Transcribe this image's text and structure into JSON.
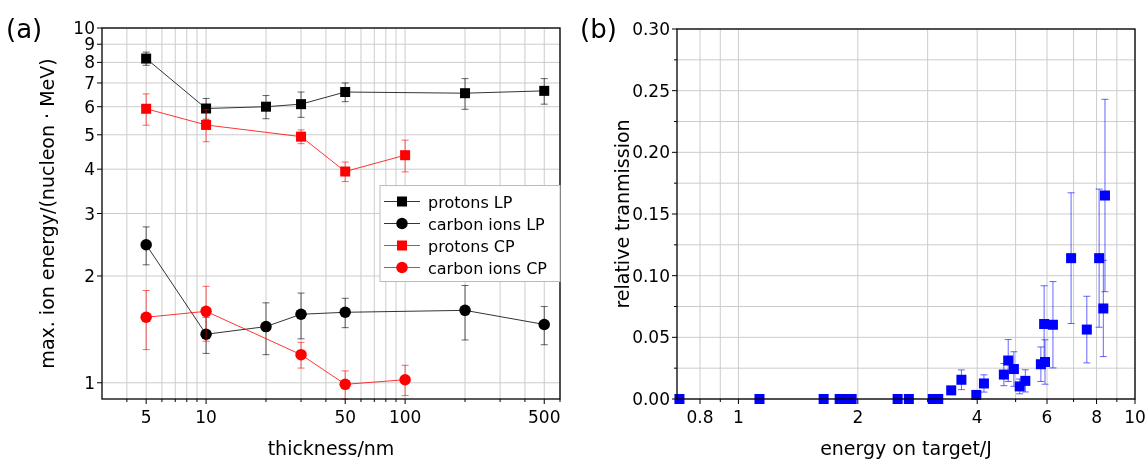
{
  "chart_data": [
    {
      "type": "line",
      "title": "(a)",
      "xlabel": "thickness/nm",
      "ylabel": "max. ion energy/(nucleon · MeV)",
      "log": "xy",
      "grid": true,
      "legend": "right",
      "xlim": [
        3,
        600
      ],
      "ylim": [
        0.9,
        10
      ],
      "xticks": [
        {
          "value": 4,
          "label": null
        },
        5,
        {
          "value": 6,
          "label": null
        },
        {
          "value": 7,
          "label": null
        },
        {
          "value": 8,
          "label": null
        },
        {
          "value": 9,
          "label": null
        },
        10,
        {
          "value": 20,
          "label": null
        },
        {
          "value": 30,
          "label": null
        },
        {
          "value": 40,
          "label": null
        },
        50,
        {
          "value": 60,
          "label": null
        },
        {
          "value": 70,
          "label": null
        },
        {
          "value": 80,
          "label": null
        },
        {
          "value": 90,
          "label": null
        },
        100,
        {
          "value": 200,
          "label": null
        },
        {
          "value": 300,
          "label": null
        },
        {
          "value": 400,
          "label": null
        },
        500,
        {
          "value": 600,
          "label": null
        }
      ],
      "yticks": [
        1,
        2,
        3,
        4,
        5,
        6,
        7,
        8,
        9,
        10
      ],
      "series": [
        {
          "name": "protons LP",
          "color": "#000000",
          "marker": "square",
          "x": [
            5,
            10,
            20,
            30,
            50,
            200,
            500
          ],
          "values": [
            8.2,
            5.93,
            6.0,
            6.1,
            6.6,
            6.55,
            6.65
          ],
          "errors": [
            0.35,
            0.4,
            0.45,
            0.5,
            0.4,
            0.65,
            0.55
          ]
        },
        {
          "name": "carbon ions LP",
          "color": "#000000",
          "marker": "circle",
          "x": [
            5,
            10,
            20,
            30,
            50,
            200,
            500
          ],
          "values": [
            2.45,
            1.37,
            1.44,
            1.56,
            1.58,
            1.6,
            1.46
          ],
          "errors": [
            0.3,
            0.16,
            0.24,
            0.23,
            0.15,
            0.28,
            0.18
          ]
        },
        {
          "name": "protons CP",
          "color": "#ff0000",
          "marker": "square",
          "x": [
            5,
            10,
            30,
            50,
            100
          ],
          "values": [
            5.92,
            5.33,
            4.94,
            3.94,
            4.38
          ],
          "errors": [
            0.6,
            0.55,
            0.22,
            0.25,
            0.45
          ]
        },
        {
          "name": "carbon ions CP",
          "color": "#ff0000",
          "marker": "circle",
          "x": [
            5,
            10,
            30,
            50,
            100
          ],
          "values": [
            1.53,
            1.59,
            1.2,
            0.99,
            1.02
          ],
          "errors": [
            0.29,
            0.28,
            0.1,
            0.09,
            0.1
          ]
        }
      ]
    },
    {
      "type": "scatter",
      "title": "(b)",
      "xlabel": "energy on target/J",
      "ylabel": "relative tranmission",
      "log": "x",
      "grid": true,
      "marker": "square",
      "xlim": [
        0.7,
        10
      ],
      "ylim": [
        0,
        0.3
      ],
      "xticks": [
        0.8,
        {
          "value": 0.9,
          "label": null
        },
        1,
        2,
        {
          "value": 3,
          "label": null
        },
        4,
        {
          "value": 5,
          "label": null
        },
        6,
        {
          "value": 7,
          "label": null
        },
        8,
        {
          "value": 9,
          "label": null
        },
        10
      ],
      "yticks": [
        {
          "value": 0,
          "label": "0.00"
        },
        {
          "value": 0.025,
          "label": null
        },
        {
          "value": 0.05,
          "label": "0.05"
        },
        {
          "value": 0.075,
          "label": null
        },
        {
          "value": 0.1,
          "label": "0.10"
        },
        {
          "value": 0.125,
          "label": null
        },
        {
          "value": 0.15,
          "label": "0.15"
        },
        {
          "value": 0.175,
          "label": null
        },
        {
          "value": 0.2,
          "label": "0.20"
        },
        {
          "value": 0.225,
          "label": null
        },
        {
          "value": 0.25,
          "label": "0.25"
        },
        {
          "value": 0.275,
          "label": null
        },
        {
          "value": 0.3,
          "label": "0.30"
        }
      ],
      "series": [
        {
          "color": "#0000ff",
          "x": [
            0.71,
            1.13,
            1.64,
            1.8,
            1.86,
            1.93,
            2.52,
            2.69,
            3.09,
            3.19,
            3.44,
            3.65,
            3.98,
            4.16,
            4.67,
            4.79,
            4.95,
            5.12,
            5.29,
            5.79,
            5.93,
            5.9,
            6.21,
            6.9,
            7.56,
            8.12,
            8.32,
            8.4
          ],
          "values": [
            0,
            0,
            0,
            0,
            0,
            0,
            0,
            0,
            0,
            0,
            0.007,
            0.0156,
            0.0033,
            0.0126,
            0.0198,
            0.0312,
            0.0243,
            0.0102,
            0.0147,
            0.0282,
            0.03,
            0.0608,
            0.0602,
            0.1142,
            0.0563,
            0.1142,
            0.0734,
            0.165
          ],
          "errors": [
            null,
            null,
            null,
            null,
            null,
            null,
            null,
            null,
            null,
            null,
            null,
            0.008,
            null,
            0.007,
            0.009,
            0.017,
            0.014,
            0.006,
            0.009,
            0.014,
            0.018,
            0.031,
            0.035,
            0.053,
            0.027,
            0.056,
            0.039,
            0.078
          ]
        }
      ]
    }
  ]
}
